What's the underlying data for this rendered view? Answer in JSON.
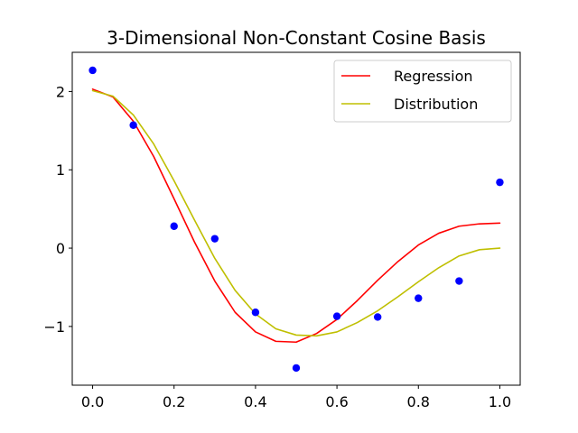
{
  "chart_data": {
    "type": "line",
    "title": "3-Dimensional Non-Constant Cosine Basis",
    "xlabel": "",
    "ylabel": "",
    "xlim": [
      -0.05,
      1.05
    ],
    "ylim": [
      -1.75,
      2.5
    ],
    "x_ticks": [
      0.0,
      0.2,
      0.4,
      0.6,
      0.8,
      1.0
    ],
    "x_tick_labels": [
      "0.0",
      "0.2",
      "0.4",
      "0.6",
      "0.8",
      "1.0"
    ],
    "y_ticks": [
      -1,
      0,
      1,
      2
    ],
    "y_tick_labels": [
      "−1",
      "0",
      "1",
      "2"
    ],
    "grid": false,
    "legend_position": "top-right",
    "scatter": {
      "color": "#0000ff",
      "x": [
        0.0,
        0.1,
        0.2,
        0.3,
        0.4,
        0.5,
        0.6,
        0.7,
        0.8,
        0.9,
        1.0
      ],
      "y": [
        2.27,
        1.57,
        0.28,
        0.12,
        -0.82,
        -1.53,
        -0.87,
        -0.88,
        -0.64,
        -0.42,
        0.84
      ]
    },
    "series": [
      {
        "name": "Regression",
        "color": "#ff0000",
        "x": [
          0.0,
          0.05,
          0.1,
          0.15,
          0.2,
          0.25,
          0.3,
          0.35,
          0.4,
          0.45,
          0.5,
          0.55,
          0.6,
          0.65,
          0.7,
          0.75,
          0.8,
          0.85,
          0.9,
          0.95,
          1.0
        ],
        "y": [
          2.03,
          1.93,
          1.62,
          1.17,
          0.63,
          0.08,
          -0.42,
          -0.82,
          -1.07,
          -1.19,
          -1.2,
          -1.09,
          -0.91,
          -0.67,
          -0.41,
          -0.17,
          0.04,
          0.19,
          0.28,
          0.31,
          0.32
        ]
      },
      {
        "name": "Distribution",
        "color": "#bfbf00",
        "x": [
          0.0,
          0.05,
          0.1,
          0.15,
          0.2,
          0.25,
          0.3,
          0.35,
          0.4,
          0.45,
          0.5,
          0.55,
          0.6,
          0.65,
          0.7,
          0.75,
          0.8,
          0.85,
          0.9,
          0.95,
          1.0
        ],
        "y": [
          2.01,
          1.94,
          1.7,
          1.33,
          0.86,
          0.36,
          -0.13,
          -0.54,
          -0.84,
          -1.03,
          -1.11,
          -1.12,
          -1.07,
          -0.95,
          -0.8,
          -0.62,
          -0.43,
          -0.25,
          -0.1,
          -0.02,
          0.0
        ]
      }
    ]
  }
}
